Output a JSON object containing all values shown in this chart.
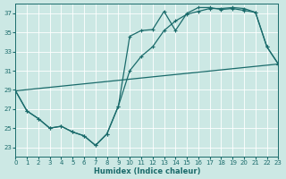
{
  "xlabel": "Humidex (Indice chaleur)",
  "bg_color": "#cce8e4",
  "line_color": "#1a6b6b",
  "grid_color": "#b0d8d4",
  "x_min": 0,
  "x_max": 23,
  "y_min": 22,
  "y_max": 38,
  "y_ticks": [
    23,
    25,
    27,
    29,
    31,
    33,
    35,
    37
  ],
  "x_ticks": [
    0,
    1,
    2,
    3,
    4,
    5,
    6,
    7,
    8,
    9,
    10,
    11,
    12,
    13,
    14,
    15,
    16,
    17,
    18,
    19,
    20,
    21,
    22,
    23
  ],
  "series1_x": [
    0,
    1,
    2,
    3,
    4,
    5,
    6,
    7,
    8,
    9,
    10,
    11,
    12,
    13,
    14,
    15,
    16,
    17,
    18,
    19,
    20,
    21,
    22,
    23
  ],
  "series1_y": [
    28.9,
    26.8,
    26.0,
    25.0,
    25.2,
    24.6,
    24.2,
    23.2,
    24.4,
    27.3,
    34.6,
    35.2,
    35.3,
    37.2,
    35.2,
    37.0,
    37.6,
    37.6,
    37.4,
    37.5,
    37.3,
    37.1,
    33.5,
    31.7
  ],
  "series2_x": [
    0,
    1,
    2,
    3,
    4,
    5,
    6,
    7,
    8,
    9,
    10,
    11,
    12,
    13,
    14,
    15,
    16,
    17,
    18,
    19,
    20,
    21,
    22,
    23
  ],
  "series2_y": [
    28.9,
    26.8,
    26.0,
    25.0,
    25.2,
    24.6,
    24.2,
    23.2,
    24.4,
    27.3,
    31.0,
    32.5,
    33.5,
    35.2,
    36.2,
    36.9,
    37.2,
    37.5,
    37.5,
    37.6,
    37.5,
    37.1,
    33.5,
    31.7
  ],
  "series3_x": [
    0,
    23
  ],
  "series3_y": [
    28.9,
    31.7
  ]
}
